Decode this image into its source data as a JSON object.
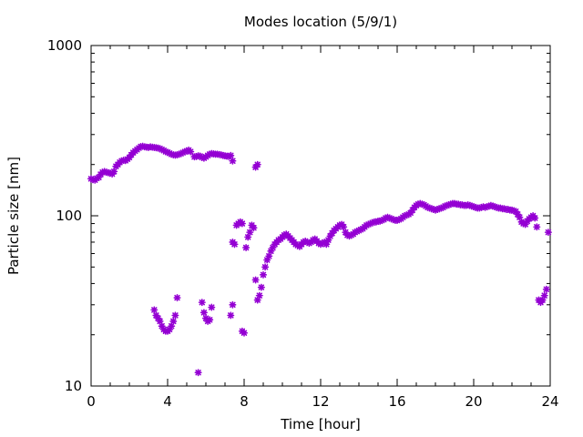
{
  "chart_data": {
    "type": "scatter",
    "title": "Modes location (5/9/1)",
    "xlabel": "Time [hour]",
    "ylabel": "Particle size [nm]",
    "xlim": [
      0,
      24
    ],
    "ylim": [
      10,
      1000
    ],
    "yscale": "log",
    "x_ticks": [
      0,
      4,
      8,
      12,
      16,
      20,
      24
    ],
    "x_tick_labels": [
      "0",
      "4",
      "8",
      "12",
      "16",
      "20",
      "24"
    ],
    "y_ticks": [
      10,
      100,
      1000
    ],
    "y_tick_labels": [
      "10",
      "100",
      "1000"
    ],
    "grid": false,
    "legend": "none",
    "marker": "asterisk",
    "color": "#9400d3",
    "series": [
      {
        "points": [
          [
            0.0,
            165
          ],
          [
            0.1,
            163
          ],
          [
            0.2,
            162
          ],
          [
            0.3,
            166
          ],
          [
            0.4,
            168
          ],
          [
            0.5,
            175
          ],
          [
            0.6,
            180
          ],
          [
            0.7,
            182
          ],
          [
            0.8,
            180
          ],
          [
            0.9,
            179
          ],
          [
            1.0,
            178
          ],
          [
            1.1,
            176
          ],
          [
            1.2,
            182
          ],
          [
            1.3,
            195
          ],
          [
            1.4,
            200
          ],
          [
            1.5,
            206
          ],
          [
            1.6,
            210
          ],
          [
            1.7,
            212
          ],
          [
            1.8,
            211
          ],
          [
            1.9,
            215
          ],
          [
            2.0,
            220
          ],
          [
            2.1,
            228
          ],
          [
            2.2,
            235
          ],
          [
            2.3,
            240
          ],
          [
            2.4,
            245
          ],
          [
            2.5,
            250
          ],
          [
            2.6,
            255
          ],
          [
            2.7,
            256
          ],
          [
            2.8,
            254
          ],
          [
            2.9,
            253
          ],
          [
            3.0,
            252
          ],
          [
            3.1,
            254
          ],
          [
            3.2,
            253
          ],
          [
            3.3,
            252
          ],
          [
            3.4,
            251
          ],
          [
            3.5,
            250
          ],
          [
            3.6,
            248
          ],
          [
            3.7,
            245
          ],
          [
            3.8,
            242
          ],
          [
            3.9,
            238
          ],
          [
            4.0,
            236
          ],
          [
            4.1,
            233
          ],
          [
            4.2,
            230
          ],
          [
            4.3,
            228
          ],
          [
            4.4,
            227
          ],
          [
            4.5,
            228
          ],
          [
            4.6,
            230
          ],
          [
            4.7,
            232
          ],
          [
            4.8,
            235
          ],
          [
            4.9,
            238
          ],
          [
            5.0,
            240
          ],
          [
            5.1,
            243
          ],
          [
            5.2,
            238
          ],
          [
            5.4,
            222
          ],
          [
            5.5,
            223
          ],
          [
            5.6,
            225
          ],
          [
            5.7,
            224
          ],
          [
            5.8,
            220
          ],
          [
            5.9,
            218
          ],
          [
            6.0,
            222
          ],
          [
            6.1,
            226
          ],
          [
            6.2,
            230
          ],
          [
            6.3,
            232
          ],
          [
            6.4,
            231
          ],
          [
            6.5,
            230
          ],
          [
            6.6,
            230
          ],
          [
            6.7,
            229
          ],
          [
            6.8,
            228
          ],
          [
            6.9,
            226
          ],
          [
            7.0,
            225
          ],
          [
            7.1,
            224
          ],
          [
            7.2,
            223
          ],
          [
            7.3,
            226
          ],
          [
            7.4,
            210
          ],
          [
            8.6,
            193
          ],
          [
            8.7,
            200
          ],
          [
            3.3,
            28
          ],
          [
            3.4,
            26
          ],
          [
            3.5,
            25
          ],
          [
            3.6,
            24
          ],
          [
            3.7,
            22.5
          ],
          [
            3.8,
            21.5
          ],
          [
            3.9,
            21
          ],
          [
            4.0,
            21
          ],
          [
            4.1,
            21.5
          ],
          [
            4.2,
            22.5
          ],
          [
            4.3,
            24
          ],
          [
            4.4,
            26
          ],
          [
            4.5,
            33
          ],
          [
            5.6,
            12
          ],
          [
            5.8,
            31
          ],
          [
            5.9,
            27
          ],
          [
            6.0,
            25
          ],
          [
            6.1,
            24
          ],
          [
            6.2,
            24.5
          ],
          [
            6.3,
            29
          ],
          [
            7.3,
            26
          ],
          [
            7.4,
            30
          ],
          [
            7.4,
            70
          ],
          [
            7.5,
            68
          ],
          [
            7.6,
            88
          ],
          [
            7.7,
            90
          ],
          [
            7.8,
            92
          ],
          [
            7.9,
            90
          ],
          [
            7.9,
            21
          ],
          [
            8.0,
            20.5
          ],
          [
            8.1,
            65
          ],
          [
            8.2,
            75
          ],
          [
            8.3,
            80
          ],
          [
            8.4,
            88
          ],
          [
            8.5,
            85
          ],
          [
            8.6,
            42
          ],
          [
            8.7,
            32
          ],
          [
            8.8,
            34
          ],
          [
            8.9,
            38
          ],
          [
            9.0,
            45
          ],
          [
            9.1,
            50
          ],
          [
            9.2,
            55
          ],
          [
            9.3,
            58
          ],
          [
            9.4,
            62
          ],
          [
            9.5,
            65
          ],
          [
            9.6,
            68
          ],
          [
            9.7,
            70
          ],
          [
            9.8,
            72
          ],
          [
            9.9,
            73
          ],
          [
            10.0,
            75
          ],
          [
            10.1,
            77
          ],
          [
            10.2,
            78
          ],
          [
            10.3,
            76
          ],
          [
            10.4,
            74
          ],
          [
            10.5,
            72
          ],
          [
            10.6,
            70
          ],
          [
            10.7,
            68
          ],
          [
            10.8,
            67
          ],
          [
            10.9,
            66
          ],
          [
            11.0,
            68
          ],
          [
            11.1,
            70
          ],
          [
            11.2,
            71
          ],
          [
            11.3,
            70
          ],
          [
            11.4,
            69
          ],
          [
            11.5,
            70
          ],
          [
            11.6,
            72
          ],
          [
            11.7,
            73
          ],
          [
            11.8,
            71
          ],
          [
            11.9,
            69
          ],
          [
            12.0,
            68
          ],
          [
            12.1,
            69
          ],
          [
            12.2,
            70
          ],
          [
            12.3,
            68
          ],
          [
            12.4,
            72
          ],
          [
            12.5,
            76
          ],
          [
            12.6,
            79
          ],
          [
            12.7,
            82
          ],
          [
            12.8,
            84
          ],
          [
            12.9,
            86
          ],
          [
            13.0,
            88
          ],
          [
            13.1,
            89
          ],
          [
            13.2,
            86
          ],
          [
            13.3,
            80
          ],
          [
            13.4,
            77
          ],
          [
            13.5,
            76
          ],
          [
            13.6,
            77
          ],
          [
            13.7,
            78
          ],
          [
            13.8,
            80
          ],
          [
            13.9,
            81
          ],
          [
            14.0,
            82
          ],
          [
            14.1,
            83
          ],
          [
            14.2,
            84
          ],
          [
            14.3,
            86
          ],
          [
            14.4,
            88
          ],
          [
            14.5,
            89
          ],
          [
            14.6,
            90
          ],
          [
            14.7,
            91
          ],
          [
            14.8,
            92
          ],
          [
            14.9,
            92
          ],
          [
            15.0,
            93
          ],
          [
            15.1,
            93
          ],
          [
            15.2,
            94
          ],
          [
            15.3,
            95
          ],
          [
            15.4,
            97
          ],
          [
            15.5,
            98
          ],
          [
            15.6,
            97
          ],
          [
            15.7,
            96
          ],
          [
            15.8,
            95
          ],
          [
            15.9,
            94
          ],
          [
            16.0,
            94
          ],
          [
            16.1,
            95
          ],
          [
            16.2,
            96
          ],
          [
            16.3,
            98
          ],
          [
            16.4,
            100
          ],
          [
            16.5,
            101
          ],
          [
            16.6,
            102
          ],
          [
            16.7,
            104
          ],
          [
            16.8,
            108
          ],
          [
            16.9,
            112
          ],
          [
            17.0,
            115
          ],
          [
            17.1,
            117
          ],
          [
            17.2,
            118
          ],
          [
            17.3,
            117
          ],
          [
            17.4,
            116
          ],
          [
            17.5,
            114
          ],
          [
            17.6,
            112
          ],
          [
            17.7,
            111
          ],
          [
            17.8,
            110
          ],
          [
            17.9,
            109
          ],
          [
            18.0,
            108
          ],
          [
            18.1,
            109
          ],
          [
            18.2,
            110
          ],
          [
            18.3,
            111
          ],
          [
            18.4,
            112
          ],
          [
            18.5,
            114
          ],
          [
            18.6,
            115
          ],
          [
            18.7,
            116
          ],
          [
            18.8,
            117
          ],
          [
            18.9,
            118
          ],
          [
            19.0,
            118
          ],
          [
            19.1,
            117
          ],
          [
            19.2,
            117
          ],
          [
            19.3,
            116
          ],
          [
            19.4,
            116
          ],
          [
            19.5,
            115
          ],
          [
            19.6,
            115
          ],
          [
            19.7,
            116
          ],
          [
            19.8,
            115
          ],
          [
            19.9,
            114
          ],
          [
            20.0,
            113
          ],
          [
            20.1,
            112
          ],
          [
            20.2,
            111
          ],
          [
            20.3,
            111
          ],
          [
            20.4,
            112
          ],
          [
            20.5,
            113
          ],
          [
            20.6,
            112
          ],
          [
            20.7,
            113
          ],
          [
            20.8,
            114
          ],
          [
            20.9,
            115
          ],
          [
            21.0,
            114
          ],
          [
            21.1,
            113
          ],
          [
            21.2,
            112
          ],
          [
            21.3,
            111
          ],
          [
            21.4,
            111
          ],
          [
            21.5,
            110
          ],
          [
            21.6,
            110
          ],
          [
            21.7,
            109
          ],
          [
            21.8,
            109
          ],
          [
            21.9,
            108
          ],
          [
            22.0,
            108
          ],
          [
            22.1,
            107
          ],
          [
            22.2,
            106
          ],
          [
            22.3,
            102
          ],
          [
            22.4,
            98
          ],
          [
            22.5,
            92
          ],
          [
            22.6,
            90
          ],
          [
            22.7,
            89
          ],
          [
            22.8,
            93
          ],
          [
            22.9,
            96
          ],
          [
            23.0,
            98
          ],
          [
            23.1,
            100
          ],
          [
            23.2,
            97
          ],
          [
            23.3,
            86
          ],
          [
            23.4,
            32
          ],
          [
            23.5,
            31
          ],
          [
            23.6,
            32
          ],
          [
            23.7,
            34
          ],
          [
            23.8,
            37
          ],
          [
            23.9,
            80
          ]
        ]
      }
    ]
  }
}
